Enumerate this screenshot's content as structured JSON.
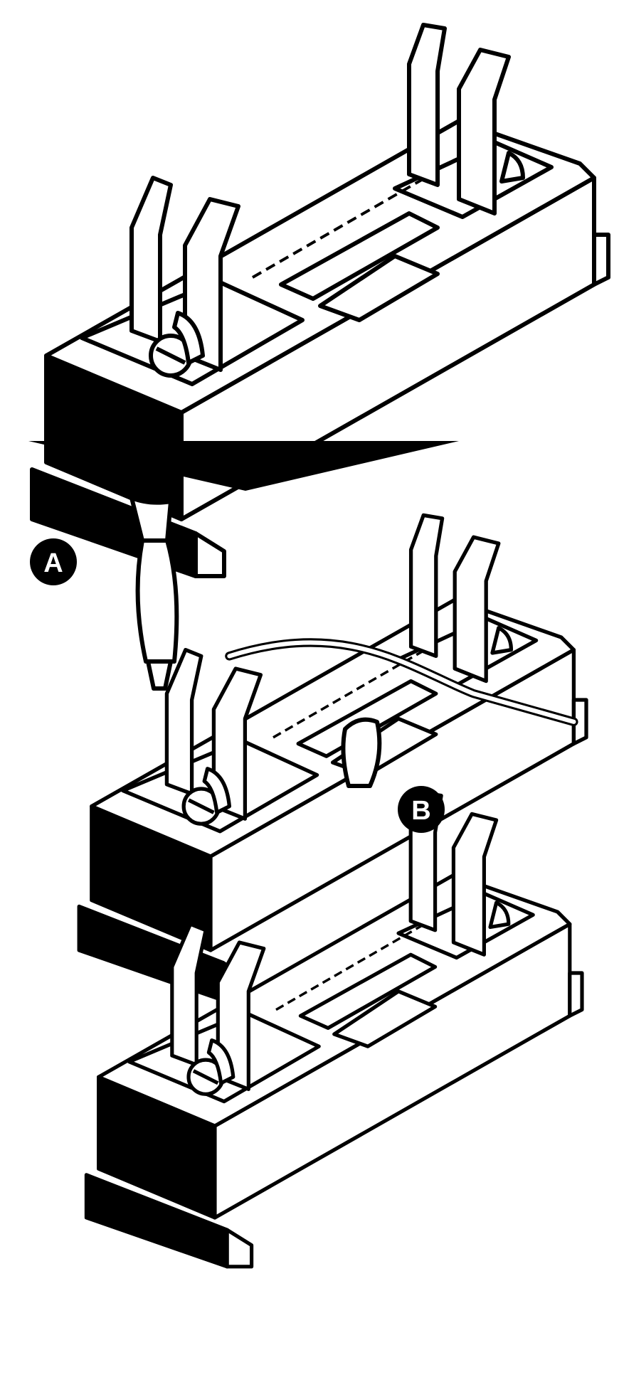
{
  "figure": {
    "background_color": "#ffffff",
    "ink_color": "#000000",
    "callouts": [
      {
        "id": "a",
        "label": "A"
      },
      {
        "id": "b",
        "label": "B"
      }
    ],
    "arrow": {
      "direction": "down",
      "icon": "down-arrow-icon"
    }
  }
}
